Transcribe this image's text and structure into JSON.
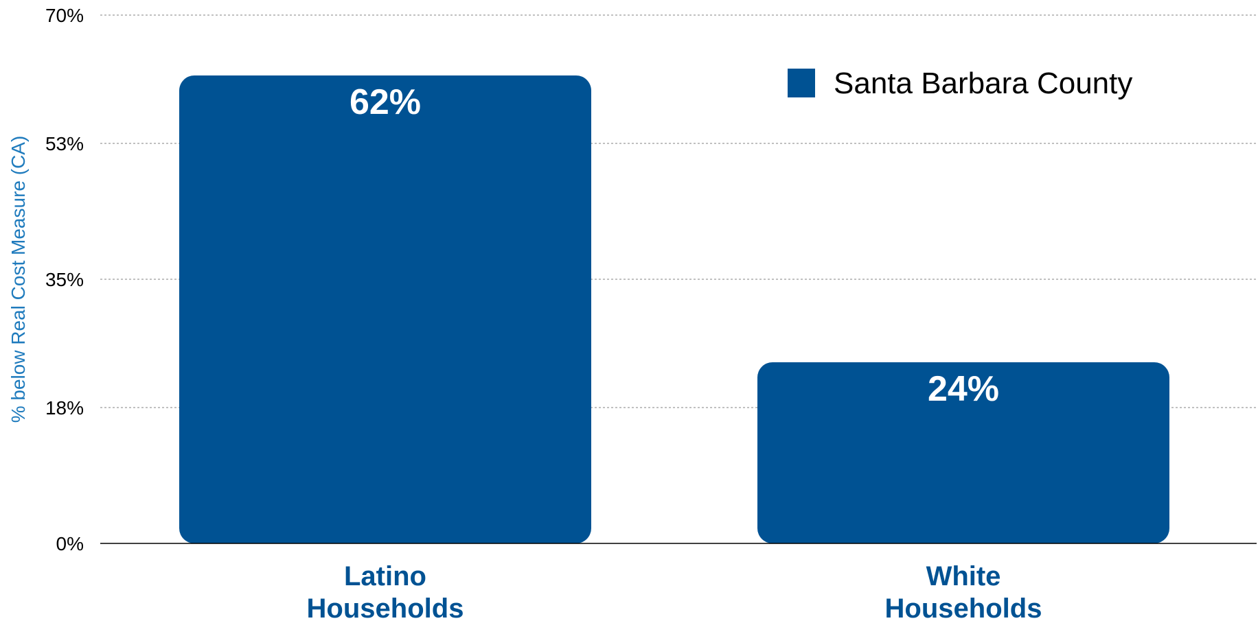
{
  "chart_data": {
    "type": "bar",
    "title": "",
    "xlabel": "",
    "ylabel": "% below Real Cost Measure (CA)",
    "categories": [
      "Latino Households",
      "White Households"
    ],
    "category_lines": [
      [
        "Latino",
        "Households"
      ],
      [
        "White",
        "Households"
      ]
    ],
    "series": [
      {
        "name": "Santa Barbara County",
        "values": [
          62,
          24
        ],
        "labels": [
          "62%",
          "24%"
        ]
      }
    ],
    "ylim": [
      0,
      70
    ],
    "yticks": [
      0,
      18,
      35,
      53,
      70
    ],
    "ytick_labels": [
      "0%",
      "18%",
      "35%",
      "53%",
      "70%"
    ],
    "grid": true,
    "legend_position": "top-right",
    "colors": {
      "bar": "#005293",
      "category_text": "#005293",
      "axis_title": "#1f7bbd"
    }
  }
}
